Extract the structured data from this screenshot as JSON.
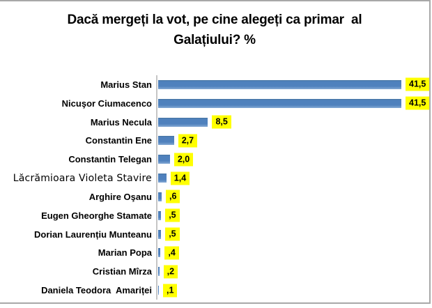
{
  "frame": {
    "border_color": "#a8a8a8",
    "background": "#ffffff"
  },
  "title_lines": {
    "0": "Dacă mergeți la vot, pe cine alegeți ca primar  al",
    "1": "Galațiului? %"
  },
  "chart_data": {
    "type": "bar",
    "orientation": "horizontal",
    "title": "Dacă mergeți la vot, pe cine alegeți ca primar al Galațiului? %",
    "categories": [
      "Marius Stan",
      "Nicuşor Ciumacenco",
      "Marius Necula",
      "Constantin Ene",
      "Constantin Telegan",
      "Lăcrămioara Violeta Stavire",
      "Arghire Oşanu",
      "Eugen Gheorghe Stamate",
      "Dorian Laurențiu Munteanu",
      "Marian Popa",
      "Cristian Mîrza",
      "Daniela Teodora  Amariței"
    ],
    "values": [
      41.5,
      41.5,
      8.5,
      2.7,
      2.0,
      1.4,
      0.6,
      0.5,
      0.5,
      0.4,
      0.2,
      0.1
    ],
    "value_labels": [
      "41,5",
      "41,5",
      "8,5",
      "2,7",
      "2,0",
      "1,4",
      ",6",
      ",5",
      ",5",
      ",4",
      ",2",
      ",1"
    ],
    "decimal_separator": ",",
    "xlim": [
      0,
      45
    ],
    "gridlines": false,
    "legend": false,
    "bar_color": "#4f81bd",
    "value_label_bg": "#ffff00",
    "value_label_color": "#000000",
    "axis_line_color": "#c6c6c6",
    "special_font_category_index": 5
  }
}
